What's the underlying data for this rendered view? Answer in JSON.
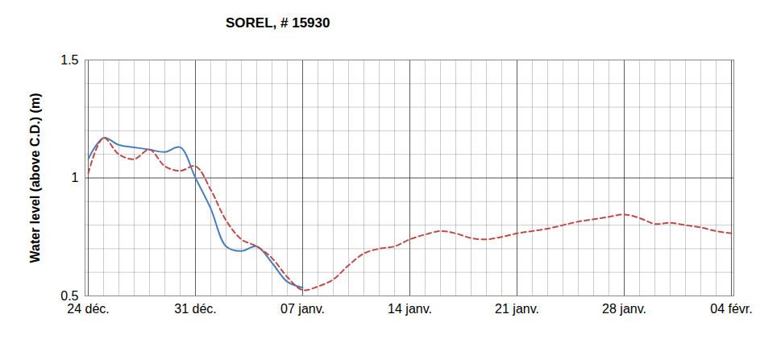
{
  "chart_data": {
    "type": "line",
    "title": "SOREL, # 15930",
    "y_label": "Water level (above C.D.) (m)",
    "categories": [
      "24 déc.",
      null,
      null,
      null,
      null,
      null,
      null,
      "31 déc.",
      null,
      null,
      null,
      null,
      null,
      null,
      "07 janv.",
      null,
      null,
      null,
      null,
      null,
      null,
      "14 janv.",
      null,
      null,
      null,
      null,
      null,
      null,
      "21 janv.",
      null,
      null,
      null,
      null,
      null,
      null,
      "28 janv.",
      null,
      null,
      null,
      null,
      null,
      null,
      "04 févr."
    ],
    "series": [
      {
        "color": "#4a7ebb",
        "line_style": "solid",
        "values": [
          1.08,
          1.17,
          1.14,
          1.13,
          1.12,
          1.11,
          1.13,
          1.0,
          0.87,
          0.71,
          0.69,
          0.71,
          0.64,
          0.56,
          0.535,
          null,
          null,
          null,
          null,
          null,
          null,
          null,
          null,
          null,
          null,
          null,
          null,
          null,
          null,
          null,
          null,
          null,
          null,
          null,
          null,
          null,
          null,
          null,
          null,
          null,
          null,
          null,
          null
        ]
      },
      {
        "color": "#be4b48",
        "line_style": "dashed",
        "values": [
          1.02,
          1.17,
          1.1,
          1.08,
          1.12,
          1.05,
          1.03,
          1.05,
          0.95,
          0.82,
          0.74,
          0.71,
          0.66,
          0.58,
          0.525,
          0.54,
          0.57,
          0.63,
          0.68,
          0.7,
          0.71,
          0.74,
          0.76,
          0.775,
          0.765,
          0.745,
          0.74,
          0.75,
          0.765,
          0.775,
          0.785,
          0.8,
          0.815,
          0.825,
          0.835,
          0.845,
          0.83,
          0.805,
          0.81,
          0.8,
          0.79,
          0.775,
          0.765
        ]
      }
    ],
    "ylim": [
      0.5,
      1.5
    ],
    "yticks": [
      0.5,
      1,
      1.5
    ],
    "grid": true
  }
}
